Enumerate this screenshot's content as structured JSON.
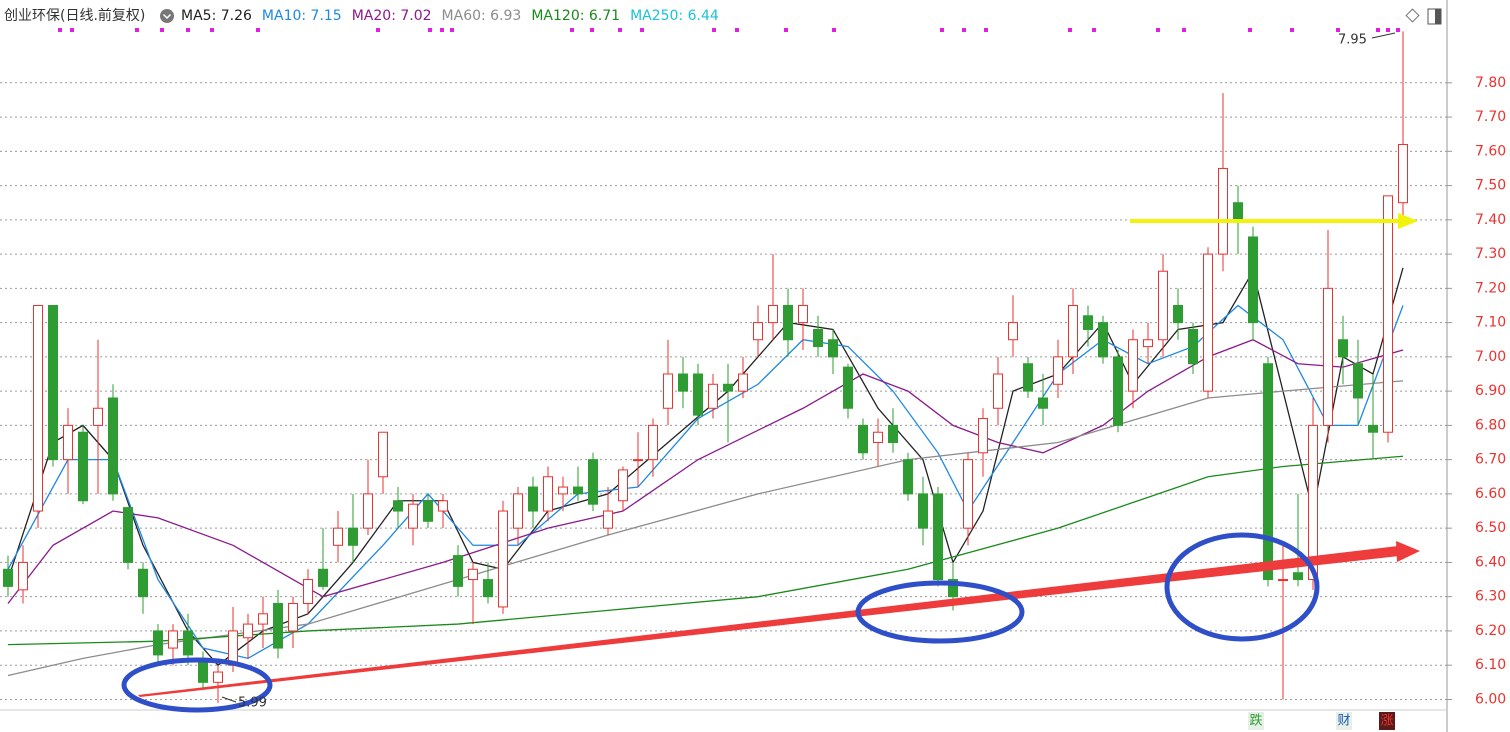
{
  "chart_data": {
    "type": "candlestick",
    "title": "创业环保(日线.前复权)",
    "up_color": "#e8332f",
    "down_color": "#2e9c32",
    "ylim": [
      5.94,
      7.96
    ],
    "yticks": [
      {
        "value": 6.0,
        "label": "6.00"
      },
      {
        "value": 6.1,
        "label": "6.10"
      },
      {
        "value": 6.2,
        "label": "6.20"
      },
      {
        "value": 6.3,
        "label": "6.30"
      },
      {
        "value": 6.4,
        "label": "6.40"
      },
      {
        "value": 6.5,
        "label": "6.50"
      },
      {
        "value": 6.6,
        "label": "6.60"
      },
      {
        "value": 6.7,
        "label": "6.70"
      },
      {
        "value": 6.8,
        "label": "6.80"
      },
      {
        "value": 6.9,
        "label": "6.90"
      },
      {
        "value": 7.0,
        "label": "7.00"
      },
      {
        "value": 7.1,
        "label": "7.10"
      },
      {
        "value": 7.2,
        "label": "7.20"
      },
      {
        "value": 7.3,
        "label": "7.30"
      },
      {
        "value": 7.4,
        "label": "7.40"
      },
      {
        "value": 7.5,
        "label": "7.50"
      },
      {
        "value": 7.6,
        "label": "7.60"
      },
      {
        "value": 7.7,
        "label": "7.70"
      },
      {
        "value": 7.8,
        "label": "7.80"
      }
    ],
    "grid": true,
    "open": [
      6.38,
      6.32,
      6.55,
      7.15,
      6.7,
      6.78,
      6.8,
      6.88,
      6.56,
      6.38,
      6.2,
      6.15,
      6.2,
      6.12,
      6.05,
      6.1,
      6.18,
      6.22,
      6.28,
      6.2,
      6.28,
      6.38,
      6.45,
      6.5,
      6.5,
      6.65,
      6.58,
      6.5,
      6.58,
      6.55,
      6.42,
      6.35,
      6.35,
      6.27,
      6.5,
      6.62,
      6.55,
      6.6,
      6.62,
      6.7,
      6.5,
      6.58,
      6.7,
      6.7,
      6.85,
      6.95,
      6.95,
      6.85,
      6.92,
      6.9,
      7.05,
      7.1,
      7.15,
      7.1,
      7.08,
      7.05,
      6.97,
      6.8,
      6.75,
      6.8,
      6.7,
      6.6,
      6.6,
      6.35,
      6.5,
      6.72,
      6.85,
      7.05,
      6.98,
      6.88,
      6.92,
      7.0,
      7.12,
      7.1,
      7.0,
      6.9,
      7.03,
      7.05,
      7.15,
      7.08,
      6.9,
      7.3,
      7.45,
      7.35,
      6.98,
      6.35,
      6.37,
      6.35,
      6.8,
      7.05,
      6.98,
      6.8,
      6.78,
      7.45
    ],
    "high": [
      6.42,
      6.45,
      7.15,
      7.15,
      6.85,
      6.8,
      7.05,
      6.92,
      6.56,
      6.4,
      6.22,
      6.22,
      6.25,
      6.14,
      6.1,
      6.27,
      6.25,
      6.3,
      6.32,
      6.3,
      6.38,
      6.5,
      6.55,
      6.6,
      6.7,
      6.78,
      6.62,
      6.6,
      6.6,
      6.6,
      6.45,
      6.4,
      6.4,
      6.58,
      6.62,
      6.65,
      6.68,
      6.65,
      6.68,
      6.72,
      6.62,
      6.68,
      6.78,
      6.82,
      7.05,
      7.0,
      6.98,
      6.95,
      6.98,
      7.0,
      7.15,
      7.3,
      7.2,
      7.2,
      7.12,
      7.08,
      6.98,
      6.82,
      6.82,
      6.85,
      6.72,
      6.65,
      6.62,
      6.4,
      6.72,
      6.85,
      7.0,
      7.18,
      7.0,
      6.95,
      7.05,
      7.2,
      7.15,
      7.12,
      7.02,
      7.08,
      7.1,
      7.3,
      7.2,
      7.1,
      7.32,
      7.77,
      7.5,
      7.38,
      7.0,
      6.45,
      6.6,
      6.88,
      7.37,
      7.12,
      7.05,
      6.95,
      7.47,
      7.95
    ],
    "low": [
      6.3,
      6.28,
      6.5,
      6.68,
      6.6,
      6.57,
      6.6,
      6.58,
      6.38,
      6.25,
      6.1,
      6.1,
      6.1,
      6.03,
      5.99,
      6.08,
      6.12,
      6.15,
      6.12,
      6.15,
      6.25,
      6.32,
      6.4,
      6.4,
      6.48,
      6.6,
      6.5,
      6.45,
      6.5,
      6.5,
      6.3,
      6.22,
      6.28,
      6.25,
      6.45,
      6.5,
      6.52,
      6.55,
      6.58,
      6.55,
      6.48,
      6.55,
      6.62,
      6.65,
      6.8,
      6.85,
      6.8,
      6.82,
      6.75,
      6.88,
      7.0,
      7.05,
      7.0,
      7.02,
      7.0,
      6.95,
      6.82,
      6.7,
      6.68,
      6.72,
      6.58,
      6.45,
      6.33,
      6.26,
      6.45,
      6.65,
      6.8,
      7.0,
      6.88,
      6.8,
      6.88,
      6.95,
      7.03,
      6.98,
      6.78,
      6.85,
      6.98,
      7.0,
      7.05,
      6.95,
      6.88,
      7.25,
      7.3,
      7.05,
      6.33,
      6.0,
      6.33,
      6.32,
      6.75,
      6.92,
      6.8,
      6.7,
      6.75,
      7.4
    ],
    "close": [
      6.33,
      6.4,
      7.15,
      6.7,
      6.8,
      6.58,
      6.85,
      6.6,
      6.4,
      6.3,
      6.13,
      6.2,
      6.13,
      6.05,
      6.08,
      6.2,
      6.22,
      6.25,
      6.15,
      6.28,
      6.35,
      6.33,
      6.5,
      6.45,
      6.6,
      6.78,
      6.55,
      6.57,
      6.52,
      6.58,
      6.33,
      6.38,
      6.3,
      6.55,
      6.6,
      6.55,
      6.65,
      6.62,
      6.6,
      6.57,
      6.55,
      6.67,
      6.7,
      6.8,
      6.95,
      6.9,
      6.83,
      6.92,
      6.9,
      6.95,
      7.1,
      7.15,
      7.05,
      7.15,
      7.03,
      7.0,
      6.85,
      6.72,
      6.78,
      6.75,
      6.6,
      6.5,
      6.35,
      6.3,
      6.7,
      6.82,
      6.95,
      7.1,
      6.9,
      6.85,
      7.0,
      7.15,
      7.08,
      7.0,
      6.8,
      7.05,
      7.05,
      7.25,
      7.1,
      6.98,
      7.3,
      7.55,
      7.4,
      7.1,
      6.35,
      6.35,
      6.35,
      6.8,
      7.2,
      7.0,
      6.88,
      6.78,
      7.47,
      7.62
    ],
    "series": [
      {
        "label": "MA5: 7.26",
        "color": "#222222",
        "x": [
          0,
          3,
          5,
          7,
          9,
          12,
          14,
          17,
          20,
          23,
          26,
          29,
          31,
          33,
          36,
          40,
          44,
          48,
          52,
          55,
          58,
          61,
          63,
          65,
          67,
          70,
          73,
          75,
          78,
          81,
          83,
          85,
          87,
          89,
          91,
          93
        ],
        "values": [
          6.35,
          6.75,
          6.8,
          6.7,
          6.45,
          6.2,
          6.1,
          6.2,
          6.25,
          6.4,
          6.58,
          6.58,
          6.4,
          6.38,
          6.55,
          6.6,
          6.75,
          6.9,
          7.1,
          7.08,
          6.85,
          6.7,
          6.4,
          6.55,
          6.9,
          6.95,
          7.1,
          6.92,
          7.08,
          7.1,
          7.25,
          6.9,
          6.55,
          7.0,
          6.95,
          7.26
        ]
      },
      {
        "label": "MA10: 7.15",
        "color": "#1e88e5",
        "x": [
          0,
          4,
          7,
          10,
          13,
          16,
          20,
          25,
          28,
          31,
          34,
          38,
          42,
          46,
          50,
          53,
          56,
          59,
          62,
          64,
          67,
          70,
          73,
          76,
          79,
          82,
          85,
          88,
          90,
          93
        ],
        "values": [
          6.38,
          6.7,
          6.7,
          6.35,
          6.15,
          6.12,
          6.22,
          6.45,
          6.6,
          6.45,
          6.45,
          6.6,
          6.62,
          6.82,
          6.92,
          7.05,
          7.03,
          6.9,
          6.72,
          6.55,
          6.75,
          6.95,
          7.05,
          6.98,
          7.03,
          7.15,
          7.05,
          6.8,
          6.8,
          7.15
        ]
      },
      {
        "label": "MA20: 7.02",
        "color": "#8b1a8b",
        "x": [
          0,
          3,
          7,
          10,
          15,
          21,
          29,
          36,
          41,
          46,
          53,
          57,
          60,
          63,
          66,
          69,
          73,
          76,
          80,
          83,
          86,
          89,
          93
        ],
        "values": [
          6.28,
          6.45,
          6.55,
          6.53,
          6.45,
          6.3,
          6.4,
          6.5,
          6.55,
          6.7,
          6.85,
          6.95,
          6.9,
          6.8,
          6.75,
          6.72,
          6.8,
          6.9,
          7.0,
          7.05,
          6.98,
          6.97,
          7.02
        ]
      },
      {
        "label": "MA60: 6.93",
        "color": "#8c8c8c",
        "x": [
          0,
          5,
          10,
          20,
          30,
          40,
          50,
          60,
          70,
          80,
          85,
          93
        ],
        "values": [
          6.07,
          6.12,
          6.16,
          6.22,
          6.35,
          6.48,
          6.6,
          6.7,
          6.75,
          6.88,
          6.9,
          6.93
        ]
      },
      {
        "label": "MA120: 6.71",
        "color": "#1a8a1a",
        "x": [
          0,
          10,
          20,
          30,
          40,
          50,
          60,
          70,
          80,
          85,
          93
        ],
        "values": [
          6.16,
          6.17,
          6.2,
          6.22,
          6.26,
          6.3,
          6.38,
          6.5,
          6.65,
          6.68,
          6.71
        ]
      },
      {
        "label": "MA250: 6.44",
        "color": "#19c3d6",
        "x": [],
        "values": []
      }
    ],
    "annotations": [
      {
        "text": "7.95"
      },
      {
        "text": "5.99"
      }
    ],
    "markers": [
      {
        "text": "跌",
        "color": "#2e9c32"
      },
      {
        "text": "财",
        "color": "#1e5bb5"
      },
      {
        "text": "涨",
        "color": "#e8332f"
      }
    ]
  }
}
